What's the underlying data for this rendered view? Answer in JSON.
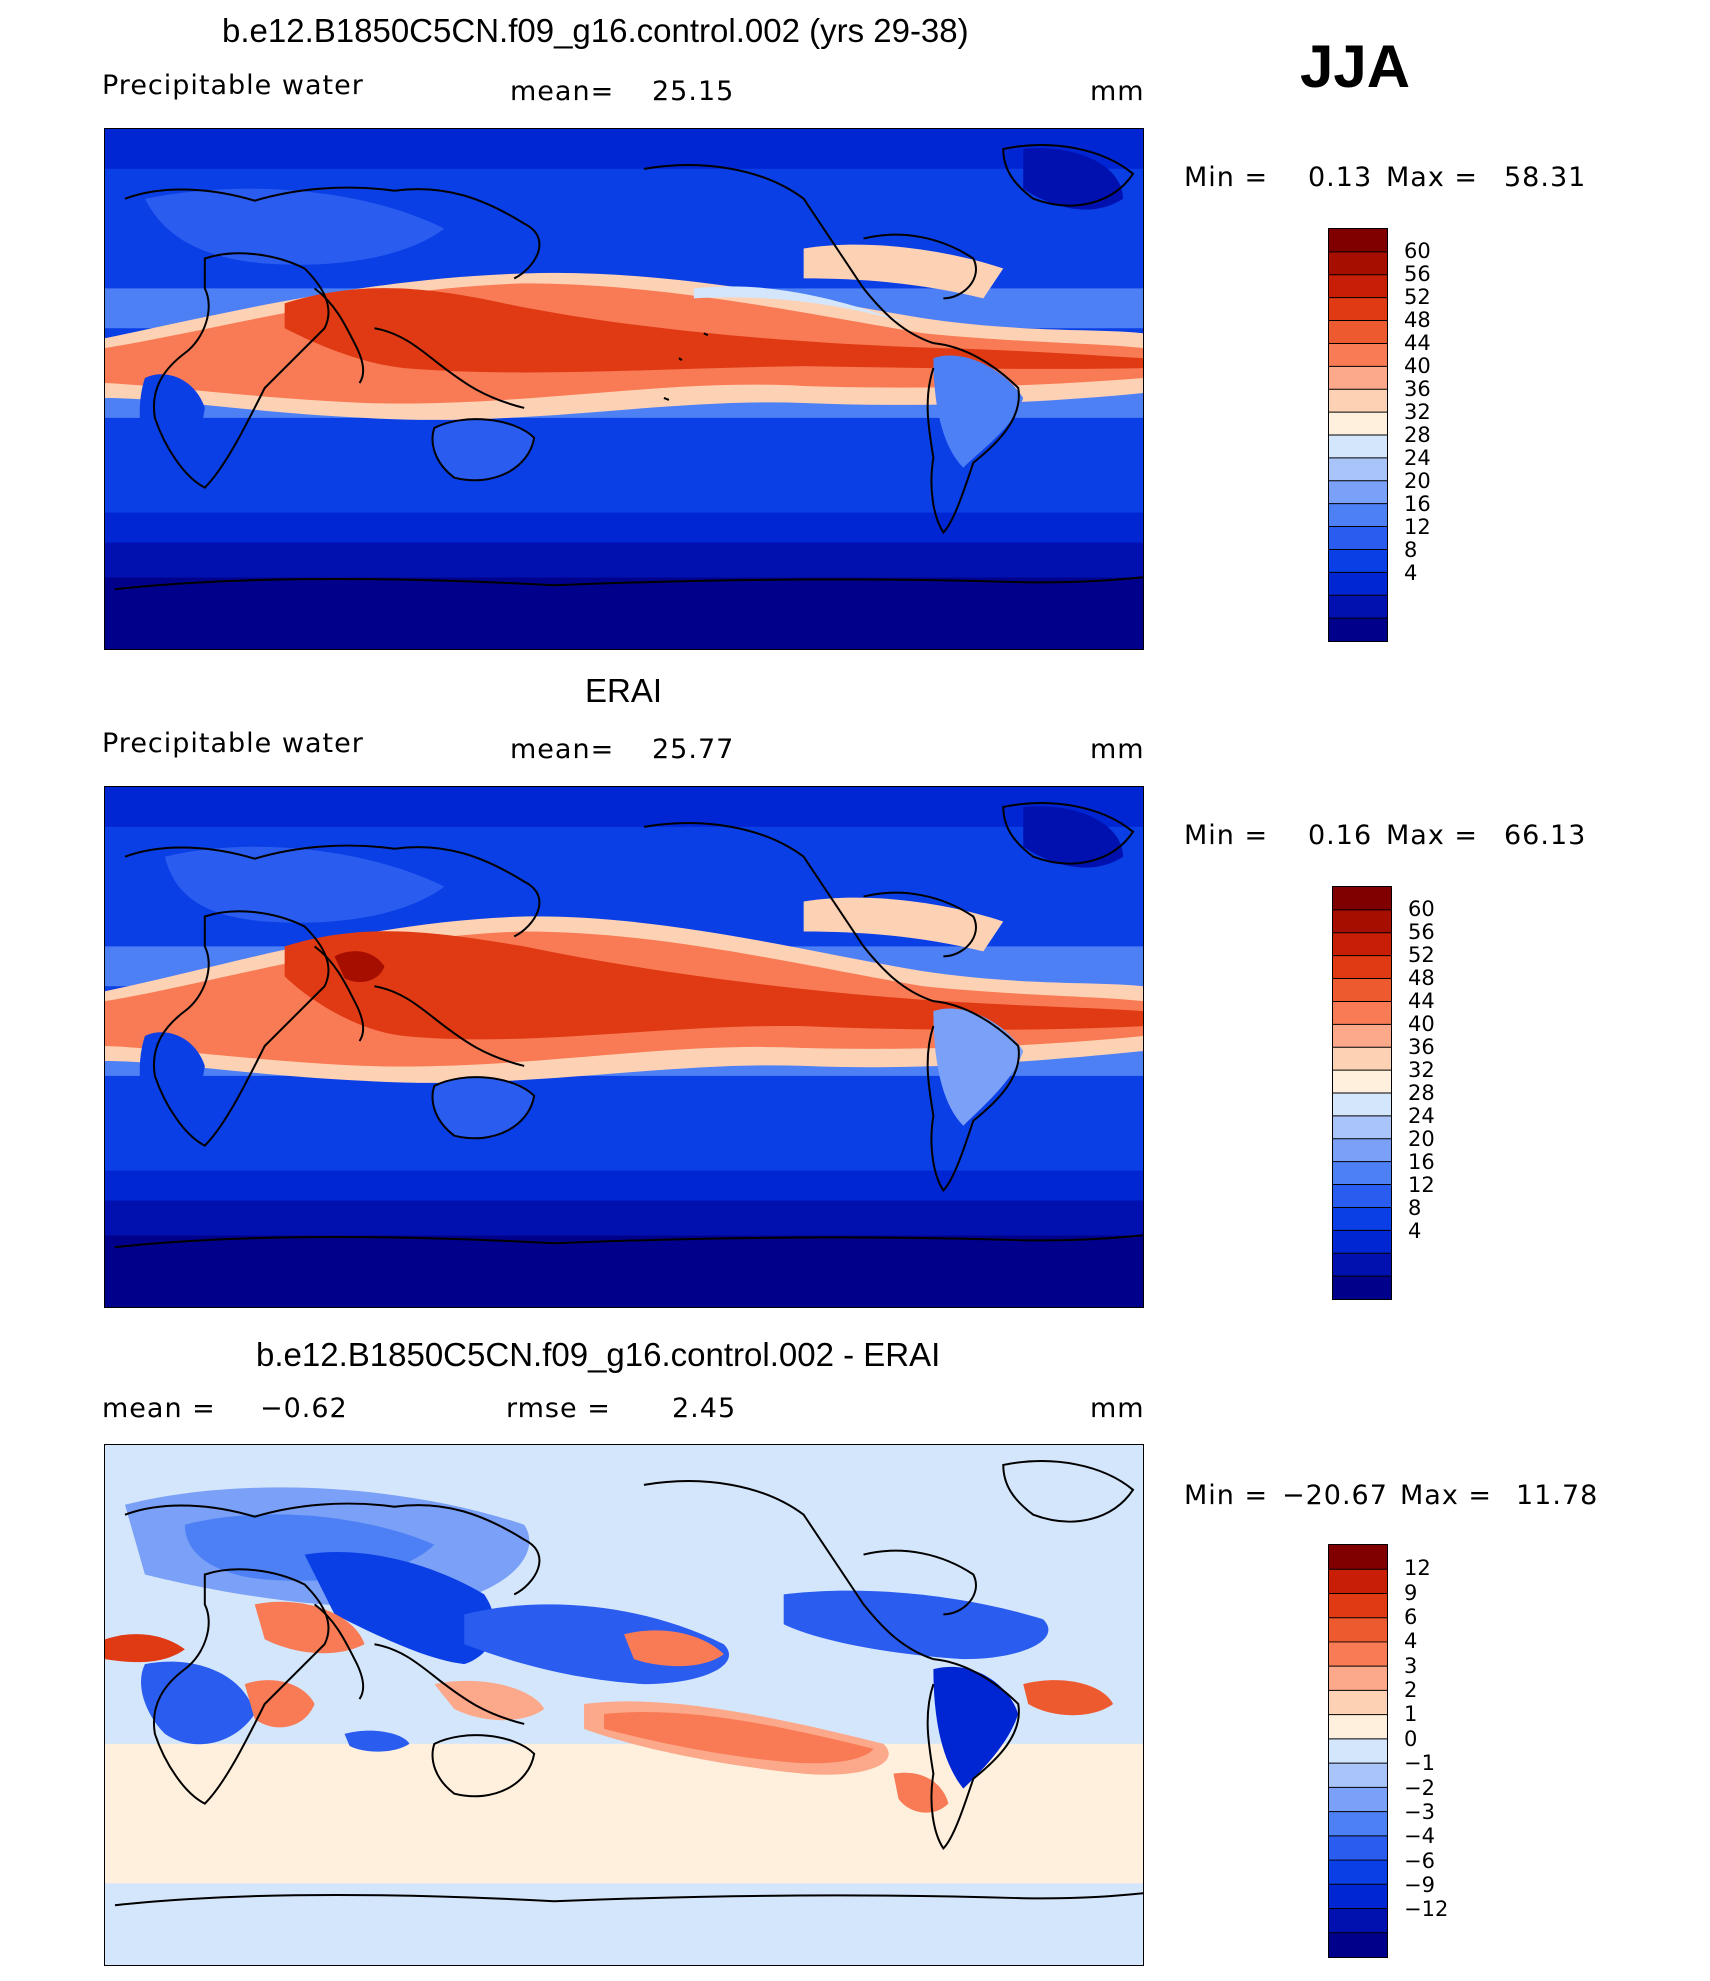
{
  "season": "JJA",
  "colors": {
    "pw_levels": [
      "#00008b",
      "#0011b0",
      "#0026d4",
      "#0a3fe6",
      "#2a5cf0",
      "#4d7ff5",
      "#7aa0f7",
      "#a8c4f8",
      "#d4e6fb",
      "#fff0dd",
      "#fdd1b4",
      "#fca88a",
      "#f87b55",
      "#ee5a2f",
      "#e03a14",
      "#c81e05",
      "#a60e00",
      "#800000"
    ],
    "diff_levels": [
      "#00008b",
      "#0011b0",
      "#0026d4",
      "#0a3fe6",
      "#2a5cf0",
      "#4d7ff5",
      "#7aa0f7",
      "#a8c4f8",
      "#d4e6fb",
      "#fff0dd",
      "#fdd1b4",
      "#fca88a",
      "#f87b55",
      "#ee5a2f",
      "#e03a14",
      "#c81e05",
      "#800000"
    ]
  },
  "panels": [
    {
      "title": "b.e12.B1850C5CN.f09_g16.control.002 (yrs 29-38)",
      "variable": "Precipitable water",
      "stat1_label": "mean=",
      "stat1_value": "25.15",
      "stat2_label": "",
      "stat2_value": "",
      "units": "mm",
      "min_label": "Min =",
      "min_value": "0.13",
      "max_label": "Max =",
      "max_value": "58.31",
      "colorbar_ticks": [
        "60",
        "56",
        "52",
        "48",
        "44",
        "40",
        "36",
        "32",
        "28",
        "24",
        "20",
        "16",
        "12",
        "8",
        "4"
      ]
    },
    {
      "title": "ERAI",
      "variable": "Precipitable water",
      "stat1_label": "mean=",
      "stat1_value": "25.77",
      "stat2_label": "",
      "stat2_value": "",
      "units": "mm",
      "min_label": "Min =",
      "min_value": "0.16",
      "max_label": "Max =",
      "max_value": "66.13",
      "colorbar_ticks": [
        "60",
        "56",
        "52",
        "48",
        "44",
        "40",
        "36",
        "32",
        "28",
        "24",
        "20",
        "16",
        "12",
        "8",
        "4"
      ]
    },
    {
      "title": "b.e12.B1850C5CN.f09_g16.control.002 - ERAI",
      "variable": "",
      "stat1_label": "mean =",
      "stat1_value": "−0.62",
      "stat2_label": "rmse =",
      "stat2_value": "2.45",
      "units": "mm",
      "min_label": "Min =",
      "min_value": "−20.67",
      "max_label": "Max =",
      "max_value": "11.78",
      "colorbar_ticks": [
        "12",
        "9",
        "6",
        "4",
        "3",
        "2",
        "1",
        "0",
        "−1",
        "−2",
        "−3",
        "−4",
        "−6",
        "−9",
        "−12"
      ]
    }
  ]
}
